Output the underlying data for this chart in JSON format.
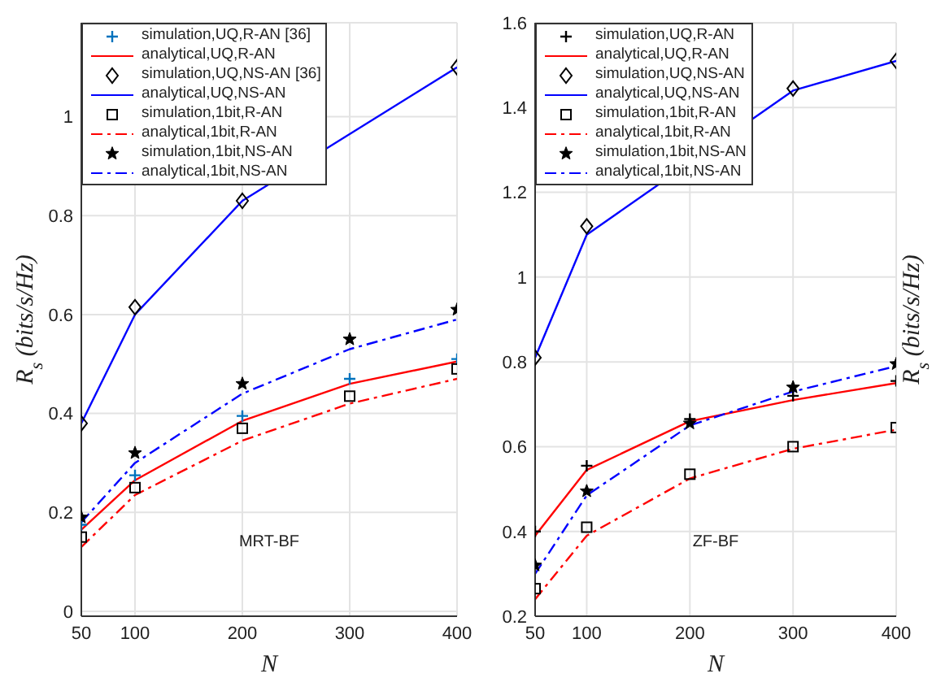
{
  "chart_data": [
    {
      "type": "line",
      "xlabel": "N",
      "ylabel": "R$_{s}$ (bits/s/Hz)",
      "x": [
        50,
        100,
        200,
        300,
        400
      ],
      "xlim": [
        50,
        400
      ],
      "xticks": [
        50,
        100,
        200,
        300,
        400
      ],
      "ylim": [
        -0.01,
        1.19
      ],
      "yticks": [
        0,
        0.2,
        0.4,
        0.6,
        0.8,
        1
      ],
      "grid": true,
      "legend": "top left",
      "annotations": [
        "MRT-BF"
      ],
      "series": [
        {
          "name": "simulation,UQ,R-AN [36]",
          "type": "scatter",
          "marker": "cross",
          "color": "#0072bd",
          "values": [
            0.175,
            0.275,
            0.395,
            0.47,
            0.51
          ]
        },
        {
          "name": "analytical,UQ,R-AN",
          "type": "line",
          "line_style": "solid",
          "color": "#ff0000",
          "values": [
            0.165,
            0.265,
            0.385,
            0.46,
            0.505
          ]
        },
        {
          "name": "simulation,UQ,NS-AN [36]",
          "type": "scatter",
          "marker": "diamond",
          "color": "#000000",
          "values": [
            0.38,
            0.615,
            0.83,
            null,
            1.1
          ]
        },
        {
          "name": "analytical,UQ,NS-AN",
          "type": "line",
          "line_style": "solid",
          "color": "#0000ff",
          "values": [
            0.38,
            0.6,
            0.83,
            null,
            1.1
          ]
        },
        {
          "name": "simulation,1bit,R-AN",
          "type": "scatter",
          "marker": "square",
          "color": "#000000",
          "values": [
            0.15,
            0.25,
            0.37,
            0.435,
            0.49
          ]
        },
        {
          "name": "analytical,1bit,R-AN",
          "type": "line",
          "line_style": "dashed",
          "color": "#ff0000",
          "values": [
            0.13,
            0.235,
            0.345,
            0.42,
            0.47
          ]
        },
        {
          "name": "simulation,1bit,NS-AN",
          "type": "scatter",
          "marker": "star",
          "color": "#000000",
          "values": [
            0.19,
            0.32,
            0.46,
            0.55,
            0.61
          ]
        },
        {
          "name": "analytical,1bit,NS-AN",
          "type": "line",
          "line_style": "dashed",
          "color": "#0000ff",
          "values": [
            0.18,
            0.3,
            0.44,
            0.53,
            0.59
          ]
        }
      ]
    },
    {
      "type": "line",
      "xlabel": "N",
      "ylabel": "R$_{s}$ (bits/s/Hz)",
      "x": [
        50,
        100,
        200,
        300,
        400
      ],
      "xlim": [
        50,
        400
      ],
      "xticks": [
        50,
        100,
        200,
        300,
        400
      ],
      "ylim": [
        0.2,
        1.6
      ],
      "yticks": [
        0.2,
        0.4,
        0.6,
        0.8,
        1,
        1.2,
        1.4,
        1.6
      ],
      "grid": true,
      "legend": "top left",
      "annotations": [
        "ZF-BF"
      ],
      "series": [
        {
          "name": "simulation,UQ,R-AN",
          "type": "scatter",
          "marker": "cross",
          "color": "#000000",
          "values": [
            0.4,
            0.555,
            0.665,
            0.72,
            0.755
          ]
        },
        {
          "name": "analytical,UQ,R-AN",
          "type": "line",
          "line_style": "solid",
          "color": "#ff0000",
          "values": [
            0.39,
            0.545,
            0.66,
            0.71,
            0.75
          ]
        },
        {
          "name": "simulation,UQ,NS-AN",
          "type": "scatter",
          "marker": "diamond",
          "color": "#000000",
          "values": [
            0.81,
            1.12,
            null,
            1.445,
            1.51
          ]
        },
        {
          "name": "analytical,UQ,NS-AN",
          "type": "line",
          "line_style": "solid",
          "color": "#0000ff",
          "values": [
            0.81,
            1.1,
            null,
            1.44,
            1.51
          ]
        },
        {
          "name": "simulation,1bit,R-AN",
          "type": "scatter",
          "marker": "square",
          "color": "#000000",
          "values": [
            0.265,
            0.41,
            0.535,
            0.6,
            0.645
          ]
        },
        {
          "name": "analytical,1bit,R-AN",
          "type": "line",
          "line_style": "dashed",
          "color": "#ff0000",
          "values": [
            0.24,
            0.39,
            0.525,
            0.595,
            0.64
          ]
        },
        {
          "name": "simulation,1bit,NS-AN",
          "type": "scatter",
          "marker": "star",
          "color": "#000000",
          "values": [
            0.32,
            0.495,
            0.655,
            0.74,
            0.795
          ]
        },
        {
          "name": "analytical,1bit,NS-AN",
          "type": "line",
          "line_style": "dashed",
          "color": "#0000ff",
          "values": [
            0.3,
            0.485,
            0.65,
            0.73,
            0.79
          ]
        }
      ]
    }
  ]
}
